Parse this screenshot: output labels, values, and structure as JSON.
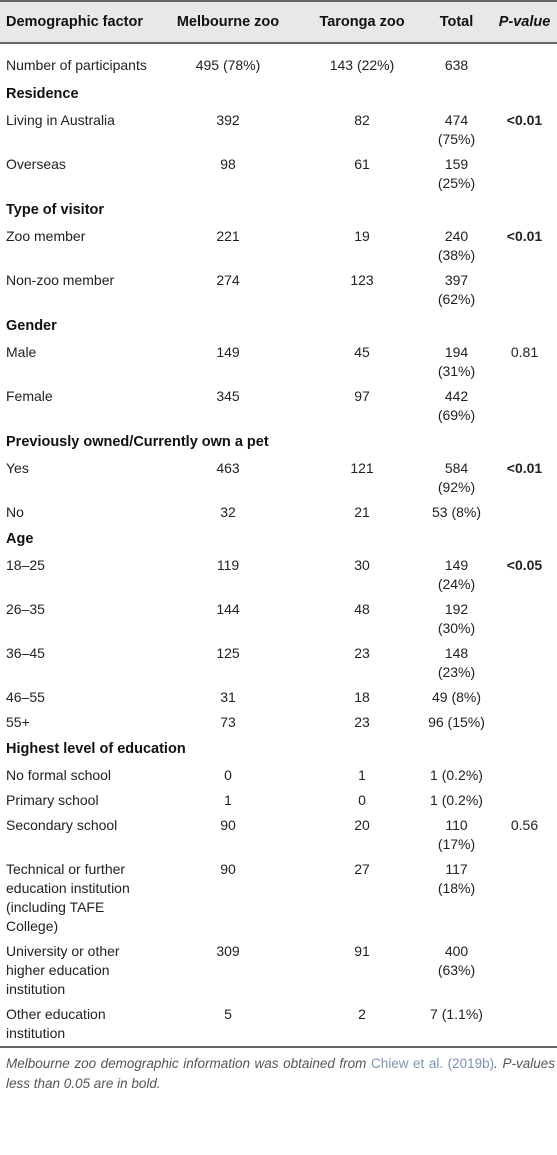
{
  "header": {
    "factor": "Demographic factor",
    "melbourne": "Melbourne zoo",
    "taronga": "Taronga zoo",
    "total": "Total",
    "pvalue": "P-value"
  },
  "participants": {
    "label": "Number of participants",
    "melbourne": "495 (78%)",
    "taronga": "143 (22%)",
    "total": "638",
    "p": ""
  },
  "sections": [
    {
      "title": "Residence",
      "rows": [
        {
          "label": "Living in Australia",
          "melbourne": "392",
          "taronga": "82",
          "total": "474 (75%)",
          "p": "<0.01",
          "p_bold": true
        },
        {
          "label": "Overseas",
          "melbourne": "98",
          "taronga": "61",
          "total": "159 (25%)",
          "p": "",
          "p_bold": false
        }
      ]
    },
    {
      "title": "Type of visitor",
      "rows": [
        {
          "label": "Zoo member",
          "melbourne": "221",
          "taronga": "19",
          "total": "240 (38%)",
          "p": "<0.01",
          "p_bold": true
        },
        {
          "label": "Non-zoo member",
          "melbourne": "274",
          "taronga": "123",
          "total": "397 (62%)",
          "p": "",
          "p_bold": false
        }
      ]
    },
    {
      "title": "Gender",
      "rows": [
        {
          "label": "Male",
          "melbourne": "149",
          "taronga": "45",
          "total": "194 (31%)",
          "p": "0.81",
          "p_bold": false
        },
        {
          "label": "Female",
          "melbourne": "345",
          "taronga": "97",
          "total": "442 (69%)",
          "p": "",
          "p_bold": false
        }
      ]
    },
    {
      "title": "Previously owned/Currently own a pet",
      "rows": [
        {
          "label": "Yes",
          "melbourne": "463",
          "taronga": "121",
          "total": "584 (92%)",
          "p": "<0.01",
          "p_bold": true
        },
        {
          "label": "No",
          "melbourne": "32",
          "taronga": "21",
          "total": "53 (8%)",
          "p": "",
          "p_bold": false
        }
      ]
    },
    {
      "title": "Age",
      "rows": [
        {
          "label": "18–25",
          "melbourne": "119",
          "taronga": "30",
          "total": "149 (24%)",
          "p": "<0.05",
          "p_bold": true
        },
        {
          "label": "26–35",
          "melbourne": "144",
          "taronga": "48",
          "total": "192 (30%)",
          "p": "",
          "p_bold": false
        },
        {
          "label": "36–45",
          "melbourne": "125",
          "taronga": "23",
          "total": "148 (23%)",
          "p": "",
          "p_bold": false
        },
        {
          "label": "46–55",
          "melbourne": "31",
          "taronga": "18",
          "total": "49 (8%)",
          "p": "",
          "p_bold": false
        },
        {
          "label": "55+",
          "melbourne": "73",
          "taronga": "23",
          "total": "96 (15%)",
          "p": "",
          "p_bold": false
        }
      ]
    },
    {
      "title": "Highest level of education",
      "rows": [
        {
          "label": "No formal school",
          "melbourne": "0",
          "taronga": "1",
          "total": "1 (0.2%)",
          "p": "",
          "p_bold": false
        },
        {
          "label": "Primary school",
          "melbourne": "1",
          "taronga": "0",
          "total": "1 (0.2%)",
          "p": "",
          "p_bold": false
        },
        {
          "label": "Secondary school",
          "melbourne": "90",
          "taronga": "20",
          "total": "110 (17%)",
          "p": "0.56",
          "p_bold": false
        },
        {
          "label": "Technical or further education institution (including TAFE College)",
          "melbourne": "90",
          "taronga": "27",
          "total": "117 (18%)",
          "p": "",
          "p_bold": false
        },
        {
          "label": "University or other higher education institution",
          "melbourne": "309",
          "taronga": "91",
          "total": "400 (63%)",
          "p": "",
          "p_bold": false
        },
        {
          "label": "Other education institution",
          "melbourne": "5",
          "taronga": "2",
          "total": "7 (1.1%)",
          "p": "",
          "p_bold": false
        }
      ]
    }
  ],
  "footnote": {
    "part1": "Melbourne zoo demographic information was obtained from ",
    "ref": "Chiew et al. (2019b)",
    "part2": ". P-values less than 0.05 are in bold."
  },
  "colors": {
    "header_bg": "#e8e8e8",
    "rule": "#666666",
    "reference_link": "#7a95b5"
  }
}
